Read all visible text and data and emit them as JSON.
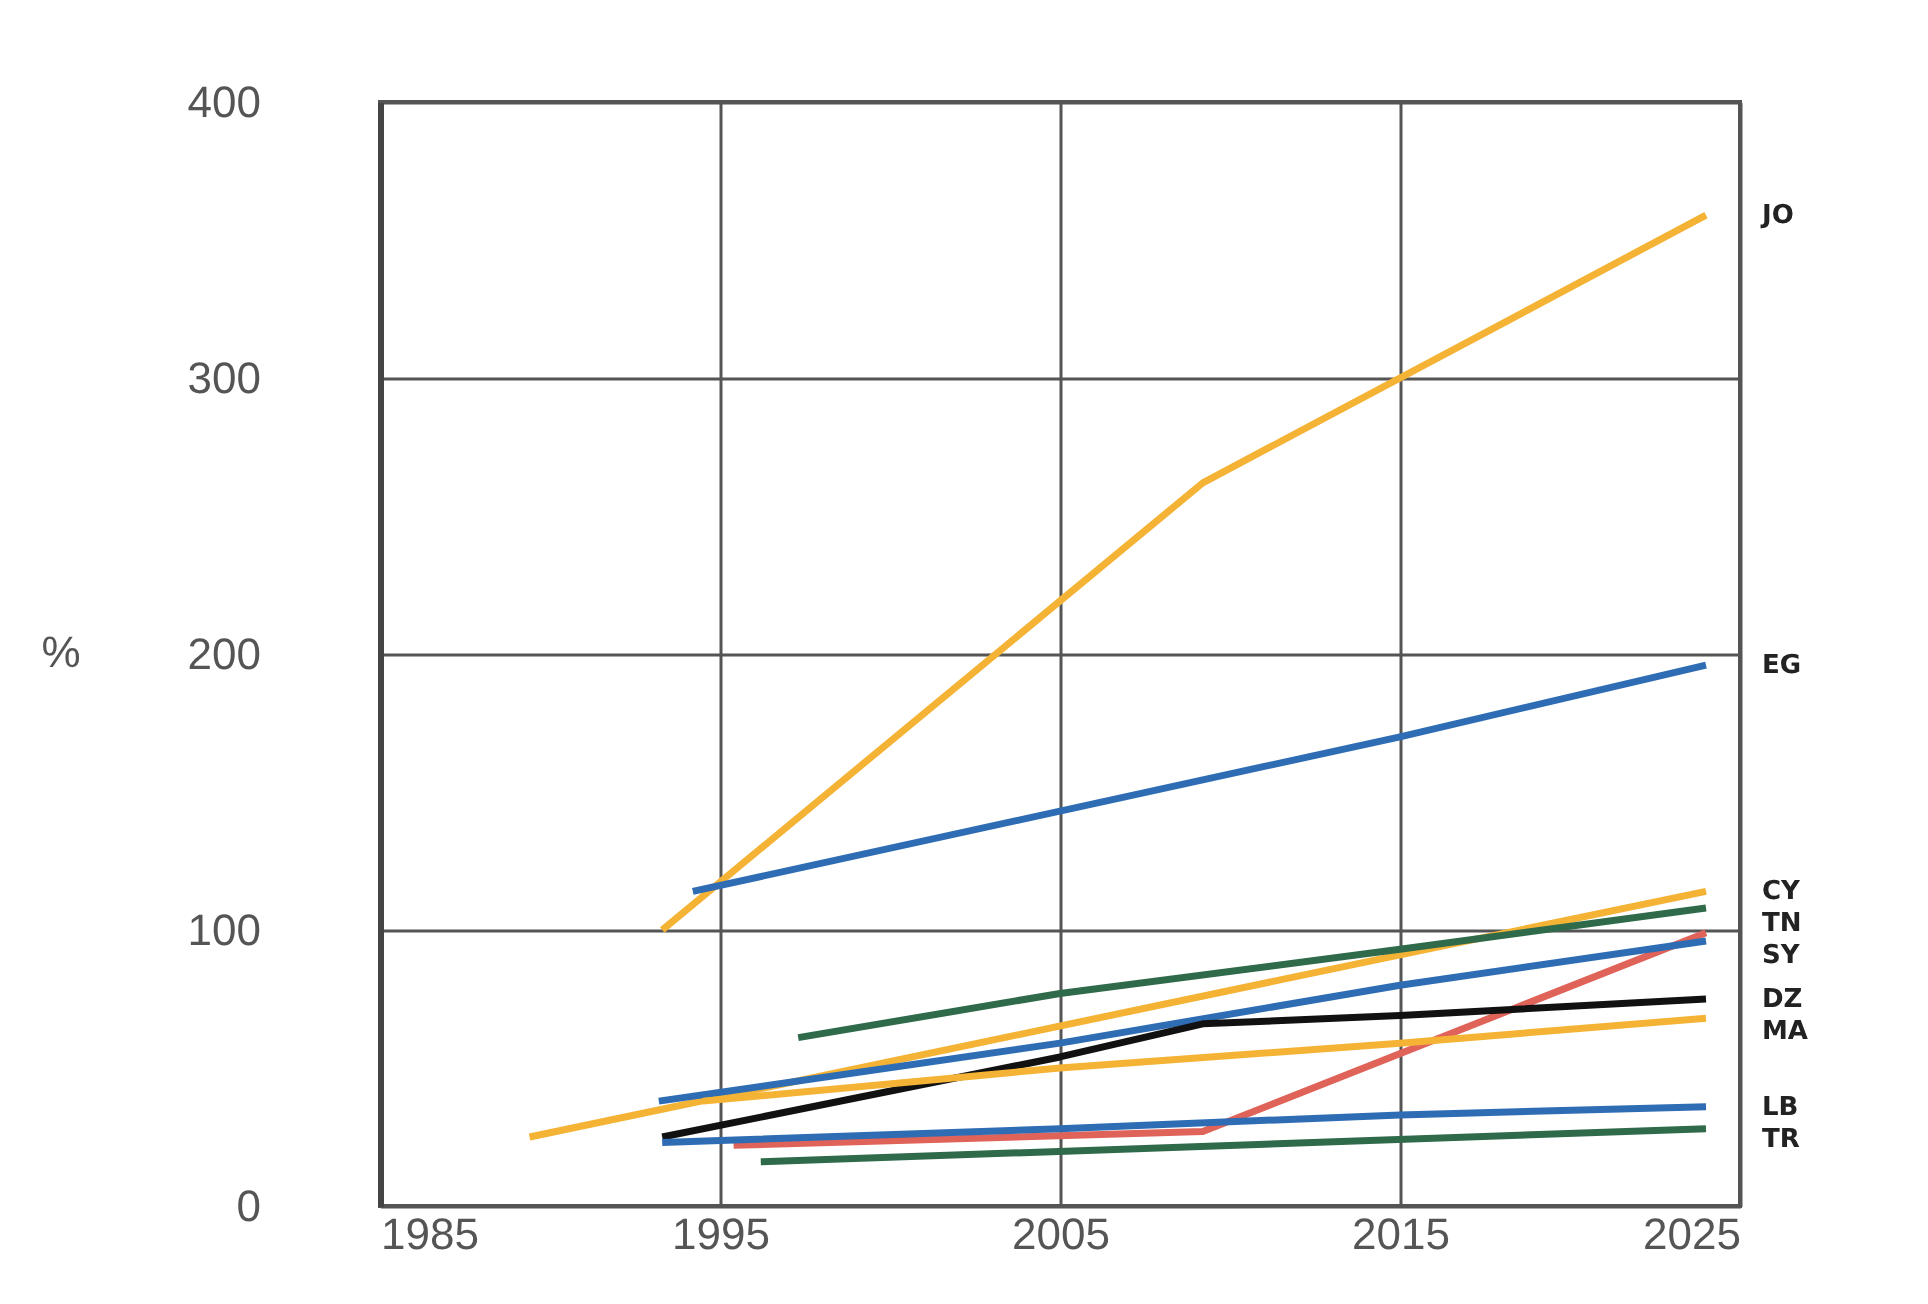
{
  "chart_data": {
    "type": "line",
    "ylabel": "%",
    "xlim": [
      1985,
      2025
    ],
    "xticks": [
      1985,
      1995,
      2005,
      2015,
      2025
    ],
    "ylim": [
      0,
      400
    ],
    "yticks": [
      0,
      100,
      200,
      300,
      400
    ],
    "grid": true,
    "series": [
      {
        "name": "JO",
        "color": "#f5b335",
        "x": [
          1993.3,
          2009.2,
          2024
        ],
        "values": [
          100,
          262,
          359
        ]
      },
      {
        "name": "EG",
        "color": "#2e6db4",
        "x": [
          1994.2,
          2015,
          2024
        ],
        "values": [
          114,
          170,
          196
        ]
      },
      {
        "name": "CY",
        "color": "#f5b335",
        "x": [
          1989.4,
          2015,
          2024
        ],
        "values": [
          25,
          91,
          114
        ]
      },
      {
        "name": "TN",
        "color": "#2f6b4a",
        "x": [
          1997.3,
          2005,
          2015,
          2024
        ],
        "values": [
          61,
          77,
          93,
          108
        ]
      },
      {
        "name": "SY",
        "color": "#e0635a",
        "x": [
          1995.4,
          2009.2,
          2024
        ],
        "values": [
          22,
          27,
          99
        ]
      },
      {
        "color": "#2e6db4",
        "x": [
          1993.2,
          2005,
          2015,
          2024
        ],
        "values": [
          38,
          59,
          80,
          96
        ]
      },
      {
        "name": "DZ",
        "color": "#111111",
        "x": [
          1993.3,
          2005,
          2009.2,
          2015,
          2024
        ],
        "values": [
          25,
          54,
          66,
          69,
          75
        ]
      },
      {
        "name": "MA",
        "color": "#f5b335",
        "x": [
          1994.5,
          2005,
          2015,
          2024
        ],
        "values": [
          38,
          50,
          59,
          68
        ]
      },
      {
        "name": "LB",
        "color": "#2e6db4",
        "x": [
          1993.3,
          2005,
          2015,
          2024
        ],
        "values": [
          23,
          28,
          33,
          36
        ]
      },
      {
        "name": "TR",
        "color": "#2f6b4a",
        "x": [
          1996.2,
          2024
        ],
        "values": [
          16,
          28
        ]
      }
    ]
  }
}
